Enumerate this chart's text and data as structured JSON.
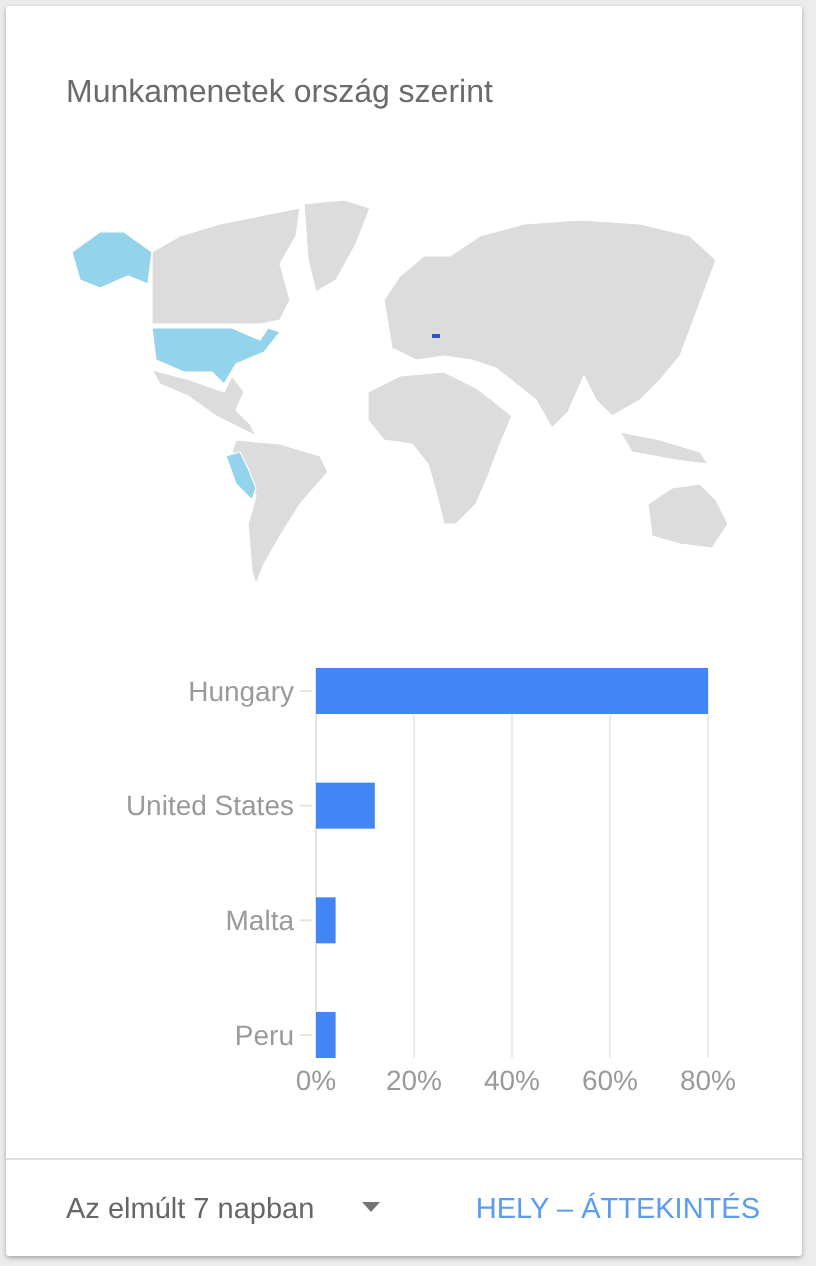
{
  "chart_data": {
    "type": "bar",
    "orientation": "horizontal",
    "title": "Munkamenetek ország szerint",
    "categories": [
      "Hungary",
      "United States",
      "Malta",
      "Peru"
    ],
    "values": [
      80,
      12,
      4,
      4
    ],
    "color": "#4285f4",
    "xlim": [
      0,
      80
    ],
    "xticks": [
      {
        "value": 0,
        "label": "0%"
      },
      {
        "value": 20,
        "label": "20%"
      },
      {
        "value": 40,
        "label": "40%"
      },
      {
        "value": 60,
        "label": "60%"
      },
      {
        "value": 80,
        "label": "80%"
      }
    ],
    "grid": "x",
    "annotations": [
      "Az elmúlt 7 napban",
      "HELY – ÁTTEKINTÉS"
    ]
  }
}
